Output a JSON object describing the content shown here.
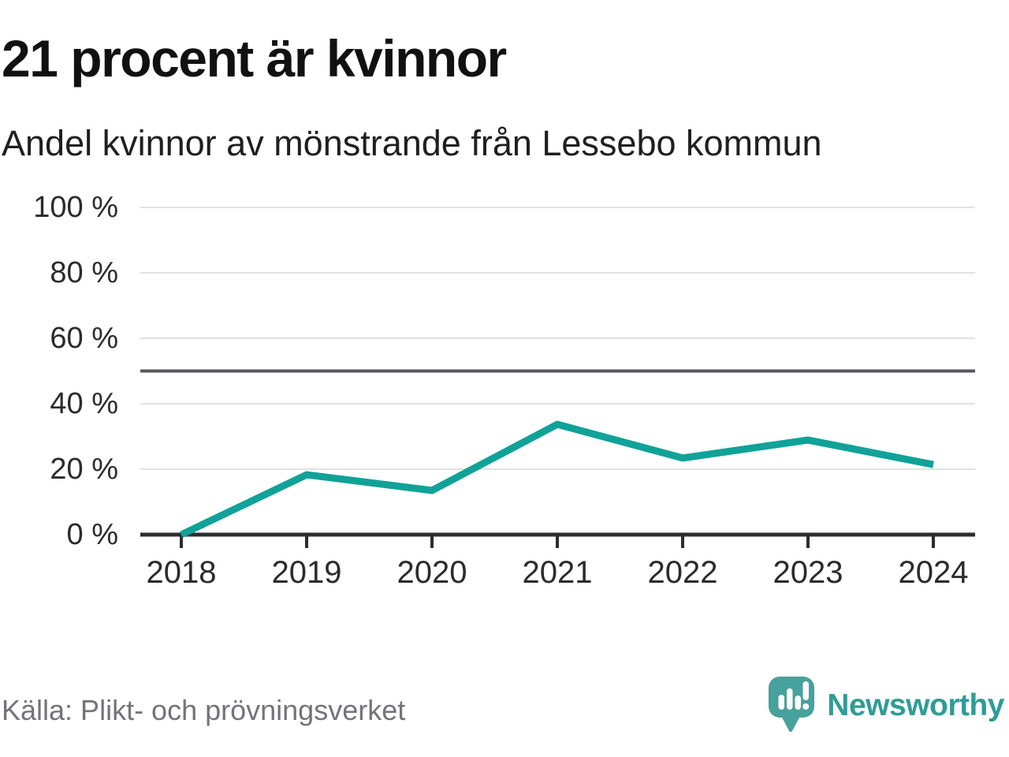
{
  "header": {
    "title": "21 procent är kvinnor",
    "subtitle": "Andel kvinnor av mönstrande från Lessebo kommun"
  },
  "chart_data": {
    "type": "line",
    "title": "21 procent är kvinnor",
    "subtitle": "Andel kvinnor av mönstrande från Lessebo kommun",
    "x": [
      2018,
      2019,
      2020,
      2021,
      2022,
      2023,
      2024
    ],
    "xtick_labels": [
      "2018",
      "2019",
      "2020",
      "2021",
      "2022",
      "2023",
      "2024"
    ],
    "series": [
      {
        "name": "Andel kvinnor av mönstrande",
        "values": [
          0,
          18.3,
          13.5,
          33.7,
          23.4,
          28.9,
          21.4
        ]
      }
    ],
    "ylim": [
      0,
      100
    ],
    "yticks": [
      0,
      20,
      40,
      60,
      80,
      100
    ],
    "ytick_labels": [
      "0 %",
      "20 %",
      "40 %",
      "60 %",
      "80 %",
      "100 %"
    ],
    "reference_line": 50,
    "grid": "horizontal",
    "legend": "none",
    "colors": {
      "line": "#10a298",
      "gridline": "#e2e2e2",
      "reference_line": "#56565e",
      "axis": "#2d2d2d",
      "tick_label": "#2b2b2b"
    }
  },
  "footer": {
    "source": "Källa: Plikt- och prövningsverket",
    "brand": "Newsworthy",
    "brand_color": "#2f9c96",
    "logo_color": "#47a19c"
  }
}
